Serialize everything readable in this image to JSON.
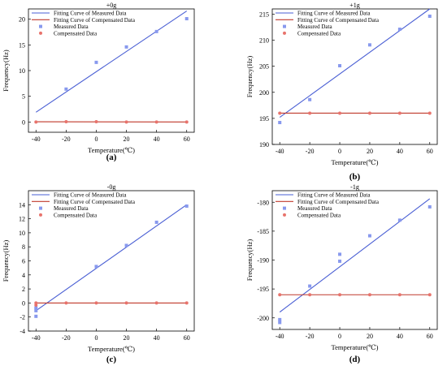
{
  "chart_data": [
    {
      "id": "a",
      "type": "line",
      "title": "+0g",
      "panel_label": "(a)",
      "xlabel": "Temperature(℃)",
      "ylabel": "Frequency(Hz)",
      "xlim": [
        -45,
        65
      ],
      "ylim": [
        -2,
        22
      ],
      "xticks": [
        -40,
        -20,
        0,
        20,
        40,
        60
      ],
      "yticks": [
        0,
        5,
        10,
        15,
        20
      ],
      "legend_position": "top-left",
      "series": [
        {
          "name": "Fitting Curve of Measured Data",
          "kind": "line",
          "color": "#4a5fd4",
          "x": [
            -40,
            60
          ],
          "y": [
            1.9,
            21.6
          ]
        },
        {
          "name": "Fitting Curve of Compensated Data",
          "kind": "line",
          "color": "#c0392b",
          "x": [
            -40,
            60
          ],
          "y": [
            0.05,
            0.0
          ]
        },
        {
          "name": "Measured Data",
          "kind": "scatter",
          "marker": "square",
          "color": "#8899ee",
          "x": [
            -20,
            0,
            20,
            40,
            60
          ],
          "y": [
            6.4,
            11.6,
            14.6,
            17.6,
            20.1
          ]
        },
        {
          "name": "Compensated Data",
          "kind": "scatter",
          "marker": "circle",
          "color": "#e8736c",
          "x": [
            -40,
            -20,
            0,
            20,
            40,
            60
          ],
          "y": [
            0.0,
            0.05,
            0.05,
            0.0,
            0.0,
            0.0
          ]
        }
      ]
    },
    {
      "id": "b",
      "type": "line",
      "title": "+1g",
      "panel_label": "(b)",
      "xlabel": "Temperature(℃)",
      "ylabel": "Frequency(Hz)",
      "xlim": [
        -45,
        65
      ],
      "ylim": [
        190,
        216
      ],
      "xticks": [
        -40,
        -20,
        0,
        20,
        40,
        60
      ],
      "yticks": [
        190,
        195,
        200,
        205,
        210,
        215
      ],
      "legend_position": "top-left",
      "series": [
        {
          "name": "Fitting Curve of Measured Data",
          "kind": "line",
          "color": "#4a5fd4",
          "x": [
            -40,
            60
          ],
          "y": [
            195.2,
            216.0
          ]
        },
        {
          "name": "Fitting Curve of Compensated Data",
          "kind": "line",
          "color": "#c0392b",
          "x": [
            -40,
            60
          ],
          "y": [
            196.0,
            196.0
          ]
        },
        {
          "name": "Measured Data",
          "kind": "scatter",
          "marker": "square",
          "color": "#8899ee",
          "x": [
            -40,
            -20,
            0,
            20,
            40,
            60
          ],
          "y": [
            194.2,
            198.6,
            205.1,
            209.1,
            212.1,
            214.6
          ]
        },
        {
          "name": "Compensated Data",
          "kind": "scatter",
          "marker": "circle",
          "color": "#e8736c",
          "x": [
            -40,
            -20,
            0,
            20,
            40,
            60
          ],
          "y": [
            196.0,
            196.0,
            196.0,
            196.0,
            196.0,
            196.0
          ]
        }
      ]
    },
    {
      "id": "c",
      "type": "line",
      "title": "-0g",
      "panel_label": "(c)",
      "xlabel": "Temperature(℃)",
      "ylabel": "Frequency(Hz)",
      "xlim": [
        -45,
        65
      ],
      "ylim": [
        -4,
        16
      ],
      "xticks": [
        -40,
        -20,
        0,
        20,
        40,
        60
      ],
      "yticks": [
        -4,
        -2,
        0,
        2,
        4,
        6,
        8,
        10,
        12,
        14
      ],
      "legend_position": "top-left",
      "series": [
        {
          "name": "Fitting Curve of Measured Data",
          "kind": "line",
          "color": "#4a5fd4",
          "x": [
            -40,
            60
          ],
          "y": [
            -1.1,
            14.0
          ]
        },
        {
          "name": "Fitting Curve of Compensated Data",
          "kind": "line",
          "color": "#c0392b",
          "x": [
            -40,
            60
          ],
          "y": [
            0.0,
            0.0
          ]
        },
        {
          "name": "Measured Data",
          "kind": "scatter",
          "marker": "square",
          "color": "#8899ee",
          "x": [
            -40,
            -40,
            -40,
            0,
            20,
            40,
            60
          ],
          "y": [
            -0.7,
            -1.1,
            -1.9,
            5.2,
            8.2,
            11.5,
            13.8
          ]
        },
        {
          "name": "Compensated Data",
          "kind": "scatter",
          "marker": "circle",
          "color": "#e8736c",
          "x": [
            -40,
            -40,
            -20,
            0,
            20,
            40,
            60
          ],
          "y": [
            0.0,
            -0.3,
            0.0,
            0.0,
            0.0,
            0.0,
            0.0
          ]
        }
      ]
    },
    {
      "id": "d",
      "type": "line",
      "title": "-1g",
      "panel_label": "(d)",
      "xlabel": "Temperature(℃)",
      "ylabel": "Frequency(Hz)",
      "xlim": [
        -45,
        65
      ],
      "ylim": [
        -202,
        -178
      ],
      "xticks": [
        -40,
        -20,
        0,
        20,
        40,
        60
      ],
      "yticks": [
        -200,
        -195,
        -190,
        -185,
        -180
      ],
      "legend_position": "top-left",
      "series": [
        {
          "name": "Fitting Curve of Measured Data",
          "kind": "line",
          "color": "#4a5fd4",
          "x": [
            -40,
            60
          ],
          "y": [
            -199.0,
            -179.4
          ]
        },
        {
          "name": "Fitting Curve of Compensated Data",
          "kind": "line",
          "color": "#c0392b",
          "x": [
            -40,
            60
          ],
          "y": [
            -196.0,
            -196.0
          ]
        },
        {
          "name": "Measured Data",
          "kind": "scatter",
          "marker": "square",
          "color": "#8899ee",
          "x": [
            -40,
            -40,
            -20,
            0,
            0,
            20,
            40,
            60
          ],
          "y": [
            -200.3,
            -200.8,
            -194.5,
            -189.0,
            -190.2,
            -185.8,
            -183.1,
            -180.8
          ]
        },
        {
          "name": "Compensated Data",
          "kind": "scatter",
          "marker": "circle",
          "color": "#e8736c",
          "x": [
            -40,
            -20,
            0,
            20,
            40,
            60
          ],
          "y": [
            -196.0,
            -196.0,
            -196.0,
            -196.0,
            -196.0,
            -196.0
          ]
        }
      ]
    }
  ]
}
